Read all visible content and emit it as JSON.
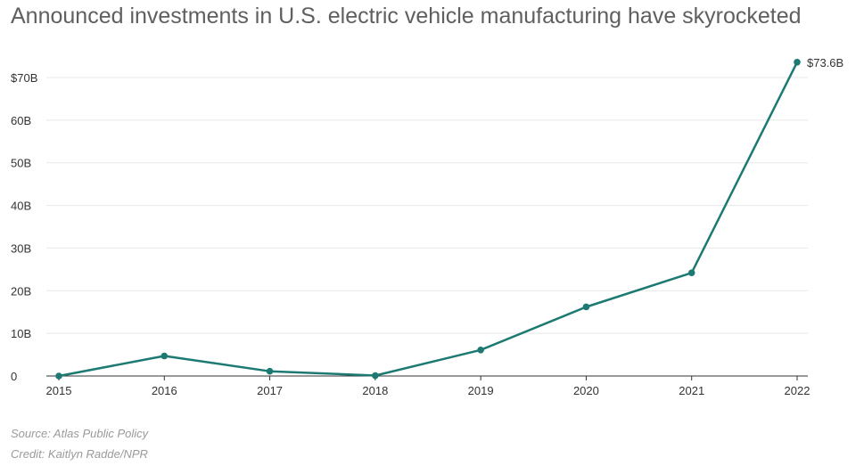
{
  "title": "Announced investments in U.S. electric vehicle manufacturing have skyrocketed",
  "footer": {
    "source": "Source: Atlas Public Policy",
    "credit": "Credit: Kaitlyn Radde/NPR"
  },
  "colors": {
    "line": "#1d7a72",
    "grid": "#e8e8e8",
    "axis": "#333333",
    "tick_text": "#333333",
    "title_text": "#5f5f5f",
    "footer_text": "#9a9a9a"
  },
  "chart_data": {
    "type": "line",
    "title": "Announced investments in U.S. electric vehicle manufacturing have skyrocketed",
    "xlabel": "",
    "ylabel": "",
    "x": [
      2015,
      2016,
      2017,
      2018,
      2019,
      2020,
      2021,
      2022
    ],
    "series": [
      {
        "values": [
          0,
          4.7,
          1.1,
          0.1,
          6.1,
          16.2,
          24.2,
          73.6
        ]
      }
    ],
    "ylim": [
      0,
      70
    ],
    "yticks": [
      0,
      10,
      20,
      30,
      40,
      50,
      60,
      70
    ],
    "ytick_labels": [
      "0",
      "10B",
      "20B",
      "30B",
      "40B",
      "50B",
      "60B",
      "$70B"
    ],
    "xtick_labels": [
      "2015",
      "2016",
      "2017",
      "2018",
      "2019",
      "2020",
      "2021",
      "2022"
    ],
    "annotations": [
      {
        "x": 2022,
        "y": 73.6,
        "text": "$73.6B"
      }
    ],
    "grid": true,
    "legend": "none"
  }
}
